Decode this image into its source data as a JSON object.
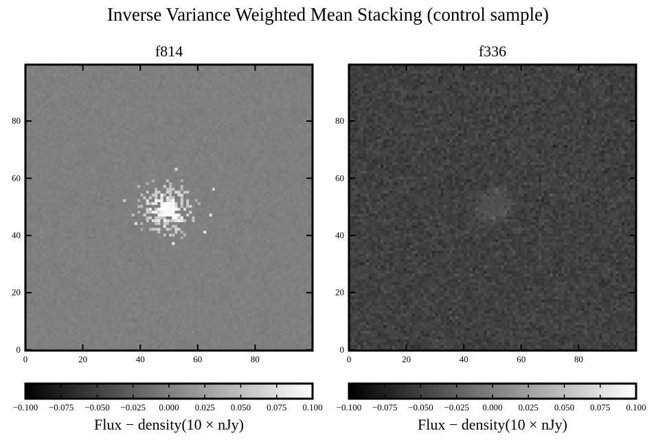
{
  "figure": {
    "title": "Inverse Variance Weighted Mean Stacking (control sample)"
  },
  "chart_data": [
    {
      "type": "heatmap",
      "title": "f814",
      "grid_size": [
        100,
        100
      ],
      "xlim": [
        0,
        99
      ],
      "ylim": [
        0,
        99
      ],
      "xticks": [
        0,
        20,
        40,
        60,
        80
      ],
      "yticks": [
        0,
        20,
        40,
        60,
        80
      ],
      "colormap": "gray",
      "background_value": 0.0,
      "peak_value": 0.1,
      "source_center": [
        49,
        49
      ],
      "source_core_radius": 3,
      "source_halo_radius": 12,
      "noise_level": 0.002,
      "grid": false,
      "colorbar": {
        "label": "Flux − density(10 × nJy)",
        "range": [
          -0.1,
          0.1
        ],
        "ticks": [
          "−0.100",
          "−0.075",
          "−0.050",
          "−0.025",
          "0.000",
          "0.025",
          "0.050",
          "0.075",
          "0.100"
        ],
        "placement": "bottom"
      }
    },
    {
      "type": "heatmap",
      "title": "f336",
      "grid_size": [
        100,
        100
      ],
      "xlim": [
        0,
        99
      ],
      "ylim": [
        0,
        99
      ],
      "xticks": [
        0,
        20,
        40,
        60,
        80
      ],
      "yticks": [
        0,
        20,
        40,
        60,
        80
      ],
      "colormap": "gray",
      "background_value": -0.05,
      "peak_value": -0.032,
      "source_center": [
        50,
        50
      ],
      "source_core_radius": 4,
      "source_halo_radius": 8,
      "noise_level": 0.006,
      "grid": false,
      "colorbar": {
        "label": "Flux − density(10 × nJy)",
        "range": [
          -0.1,
          0.1
        ],
        "ticks": [
          "−0.100",
          "−0.075",
          "−0.050",
          "−0.025",
          "0.000",
          "0.025",
          "0.050",
          "0.075",
          "0.100"
        ],
        "placement": "bottom"
      }
    }
  ]
}
